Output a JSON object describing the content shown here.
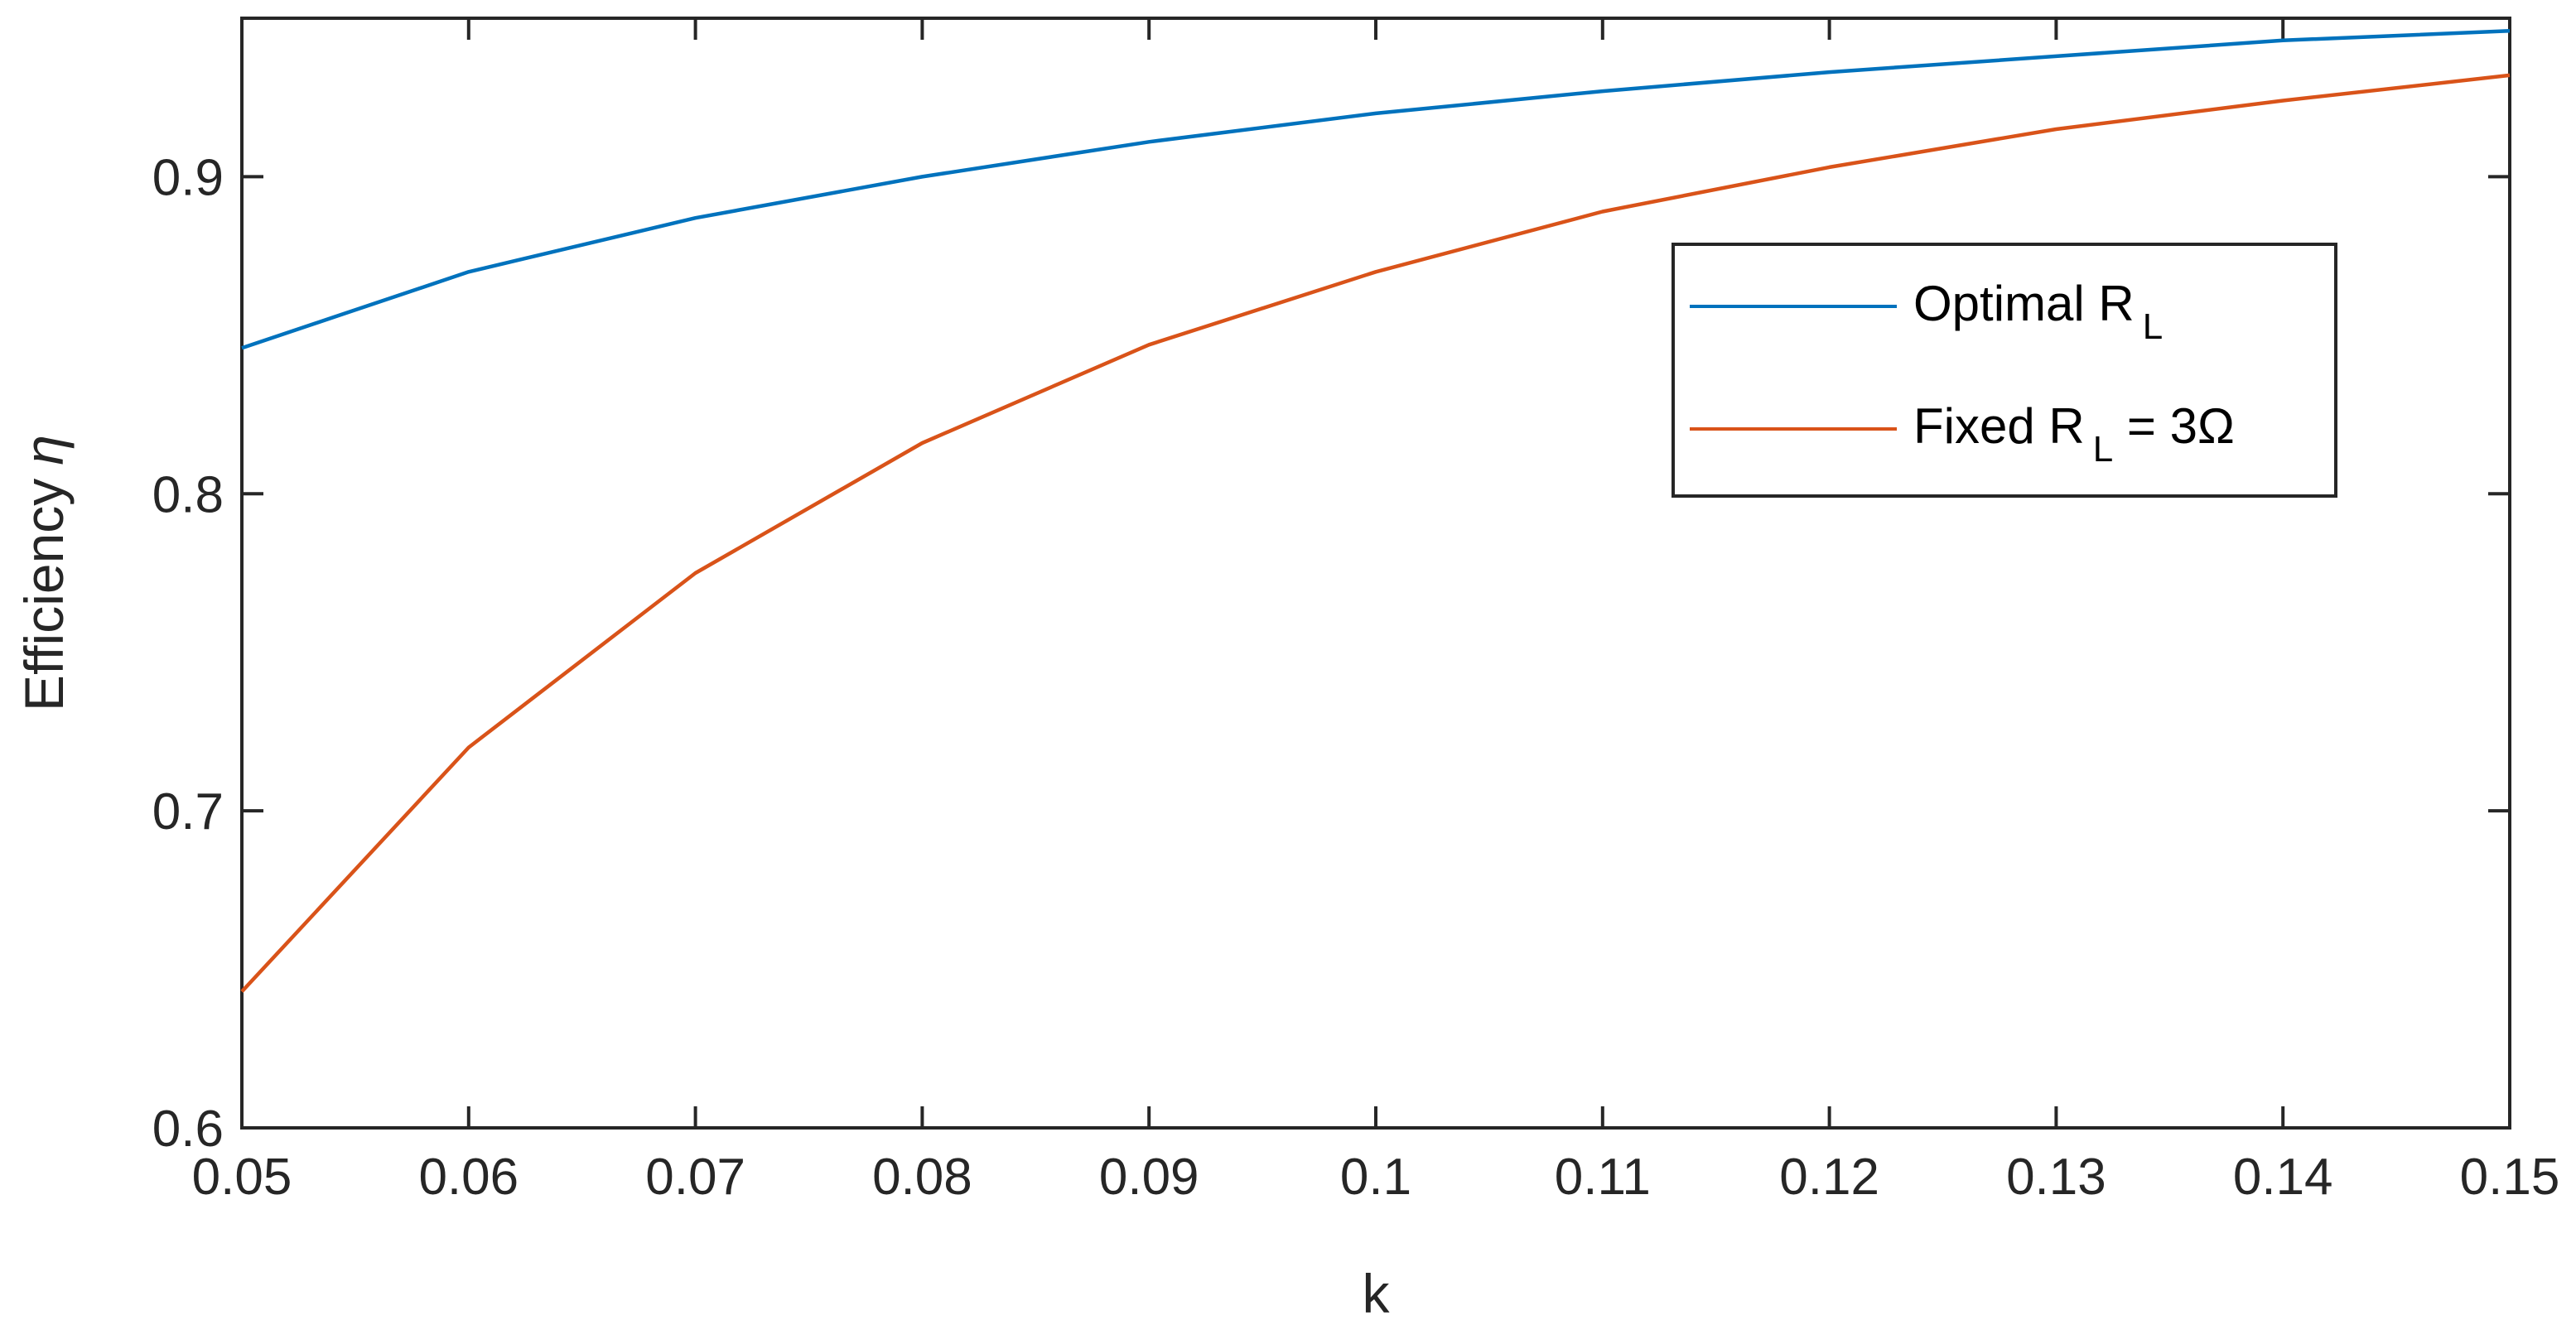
{
  "chart_data": {
    "type": "line",
    "xlabel": "k",
    "ylabel": "Efficiency",
    "ylabel_symbol": "η",
    "xlim": [
      0.05,
      0.15
    ],
    "ylim": [
      0.6,
      0.95
    ],
    "xticks": [
      0.05,
      0.06,
      0.07,
      0.08,
      0.09,
      0.1,
      0.11,
      0.12,
      0.13,
      0.14,
      0.15
    ],
    "xtick_labels": [
      "0.05",
      "0.06",
      "0.07",
      "0.08",
      "0.09",
      "0.1",
      "0.11",
      "0.12",
      "0.13",
      "0.14",
      "0.15"
    ],
    "yticks": [
      0.6,
      0.7,
      0.8,
      0.9
    ],
    "ytick_labels": [
      "0.6",
      "0.7",
      "0.8",
      "0.9"
    ],
    "grid": false,
    "legend_placement": "upper-right inside",
    "x": [
      0.05,
      0.06,
      0.07,
      0.08,
      0.09,
      0.1,
      0.11,
      0.12,
      0.13,
      0.14,
      0.15
    ],
    "series": [
      {
        "name": "Optimal R_L",
        "legend_main": "Optimal R",
        "legend_sub": "L",
        "legend_after": "",
        "color": "#0072BD",
        "values": [
          0.846,
          0.87,
          0.887,
          0.9,
          0.911,
          0.92,
          0.927,
          0.933,
          0.938,
          0.943,
          0.946
        ]
      },
      {
        "name": "Fixed R_L = 3Ω",
        "legend_main": "Fixed R",
        "legend_sub": "L",
        "legend_after": " = 3Ω",
        "color": "#D95319",
        "values": [
          0.643,
          0.72,
          0.775,
          0.816,
          0.847,
          0.87,
          0.889,
          0.903,
          0.915,
          0.924,
          0.932
        ]
      }
    ]
  }
}
